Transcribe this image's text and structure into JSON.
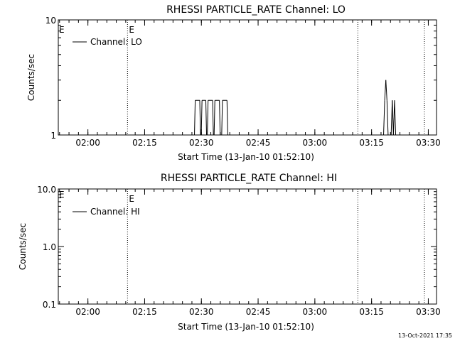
{
  "footer": {
    "timestamp": "13-Oct-2021 17:35"
  },
  "chart_data": [
    {
      "type": "line",
      "title": "RHESSI PARTICLE_RATE Channel: LO",
      "xlabel": "Start Time (13-Jan-10 01:52:10)",
      "ylabel": "Counts/sec",
      "yscale": "log",
      "ylim": [
        1,
        10
      ],
      "y_tick_labels": [
        "1",
        "10"
      ],
      "y_ticks": [
        1,
        10
      ],
      "xlim_minutes_after_start": [
        0,
        100
      ],
      "x_tick_labels": [
        "02:00",
        "02:15",
        "02:30",
        "02:45",
        "03:00",
        "03:15",
        "03:30"
      ],
      "x_tick_values": [
        7.83,
        22.83,
        37.83,
        52.83,
        67.83,
        82.83,
        97.83
      ],
      "legend": {
        "label": "Channel: LO",
        "placement": "top-left"
      },
      "event_lines": [
        {
          "x": 18.3,
          "label": "E"
        },
        {
          "x": 79.2,
          "label": ""
        },
        {
          "x": 96.8,
          "label": ""
        }
      ],
      "edge_marker": "E",
      "series": [
        {
          "name": "Channel: LO",
          "x": [
            36.0,
            36.2,
            37.4,
            37.6,
            37.8,
            38.0,
            39.0,
            39.2,
            39.4,
            39.6,
            40.8,
            41.0,
            41.2,
            41.4,
            42.6,
            42.8,
            43.2,
            43.4,
            44.6,
            44.8,
            86.0,
            86.3,
            86.6,
            86.9,
            87.2,
            87.5,
            88.0,
            88.3,
            88.6,
            88.9,
            89.2,
            89.5
          ],
          "y": [
            1,
            2,
            2,
            1,
            1,
            2,
            2,
            1,
            1,
            2,
            2,
            1,
            1,
            2,
            2,
            1,
            1,
            2,
            2,
            1,
            1,
            2,
            3,
            2,
            1,
            1,
            1,
            2,
            1,
            2,
            1,
            1
          ]
        }
      ]
    },
    {
      "type": "line",
      "title": "RHESSI PARTICLE_RATE Channel: HI",
      "xlabel": "Start Time (13-Jan-10 01:52:10)",
      "ylabel": "Counts/sec",
      "yscale": "log",
      "ylim": [
        0.1,
        10
      ],
      "y_tick_labels": [
        "0.1",
        "1.0",
        "10.0"
      ],
      "y_ticks": [
        0.1,
        1,
        10
      ],
      "xlim_minutes_after_start": [
        0,
        100
      ],
      "x_tick_labels": [
        "02:00",
        "02:15",
        "02:30",
        "02:45",
        "03:00",
        "03:15",
        "03:30"
      ],
      "x_tick_values": [
        7.83,
        22.83,
        37.83,
        52.83,
        67.83,
        82.83,
        97.83
      ],
      "legend": {
        "label": "Channel: HI",
        "placement": "top-left"
      },
      "event_lines": [
        {
          "x": 18.3,
          "label": "E"
        },
        {
          "x": 79.2,
          "label": ""
        },
        {
          "x": 96.8,
          "label": ""
        }
      ],
      "edge_marker": "E",
      "series": [
        {
          "name": "Channel: HI",
          "x": [],
          "y": []
        }
      ]
    }
  ]
}
